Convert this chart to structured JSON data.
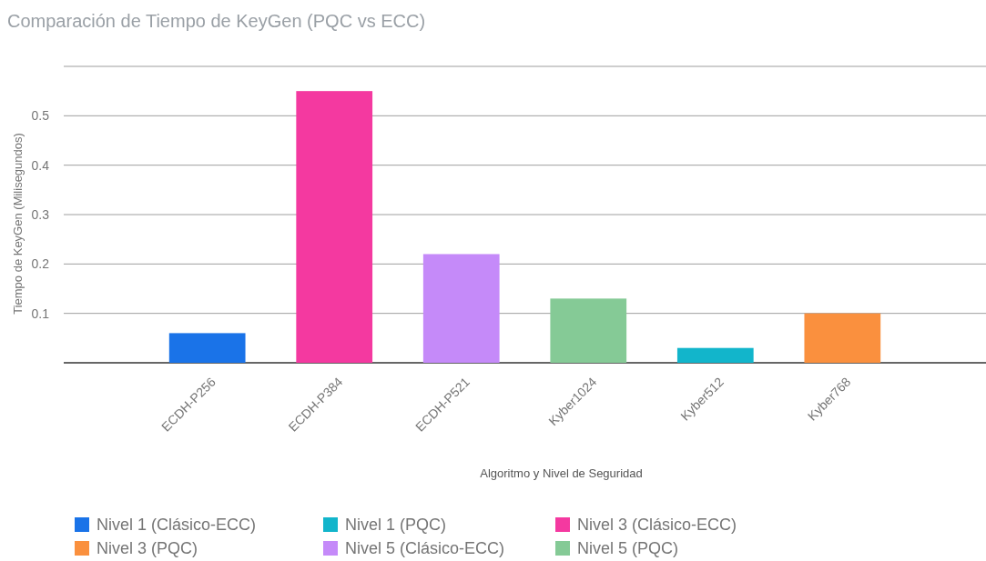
{
  "chart_data": {
    "type": "bar",
    "title": "Comparación de Tiempo de KeyGen (PQC vs ECC)",
    "xlabel": "Algoritmo y Nivel de Seguridad",
    "ylabel": "Tiempo de KeyGen (Milisegundos)",
    "categories": [
      "ECDH-P256",
      "ECDH-P384",
      "ECDH-P521",
      "Kyber1024",
      "Kyber512",
      "Kyber768"
    ],
    "series": [
      {
        "name": "Nivel 1 (Clásico-ECC)",
        "color": "#1a73e8",
        "values": [
          0.06,
          null,
          null,
          null,
          null,
          null
        ]
      },
      {
        "name": "Nivel 1 (PQC)",
        "color": "#12b5cb",
        "values": [
          null,
          null,
          null,
          null,
          0.03,
          null
        ]
      },
      {
        "name": "Nivel 3 (Clásico-ECC)",
        "color": "#f439a0",
        "values": [
          null,
          0.55,
          null,
          null,
          null,
          null
        ]
      },
      {
        "name": "Nivel 3 (PQC)",
        "color": "#fa903e",
        "values": [
          null,
          null,
          null,
          null,
          null,
          0.1
        ]
      },
      {
        "name": "Nivel 5 (Clásico-ECC)",
        "color": "#c58af9",
        "values": [
          null,
          null,
          0.22,
          null,
          null,
          null
        ]
      },
      {
        "name": "Nivel 5 (PQC)",
        "color": "#85ca96",
        "values": [
          null,
          null,
          null,
          0.13,
          null,
          null
        ]
      }
    ],
    "ylim": [
      0,
      0.6
    ],
    "yticks": [
      {
        "value": 0,
        "label": null
      },
      0.1,
      0.2,
      0.3,
      0.4,
      0.5,
      {
        "value": 0.6,
        "label": null
      }
    ],
    "grid": "y",
    "legend": "bottom"
  }
}
